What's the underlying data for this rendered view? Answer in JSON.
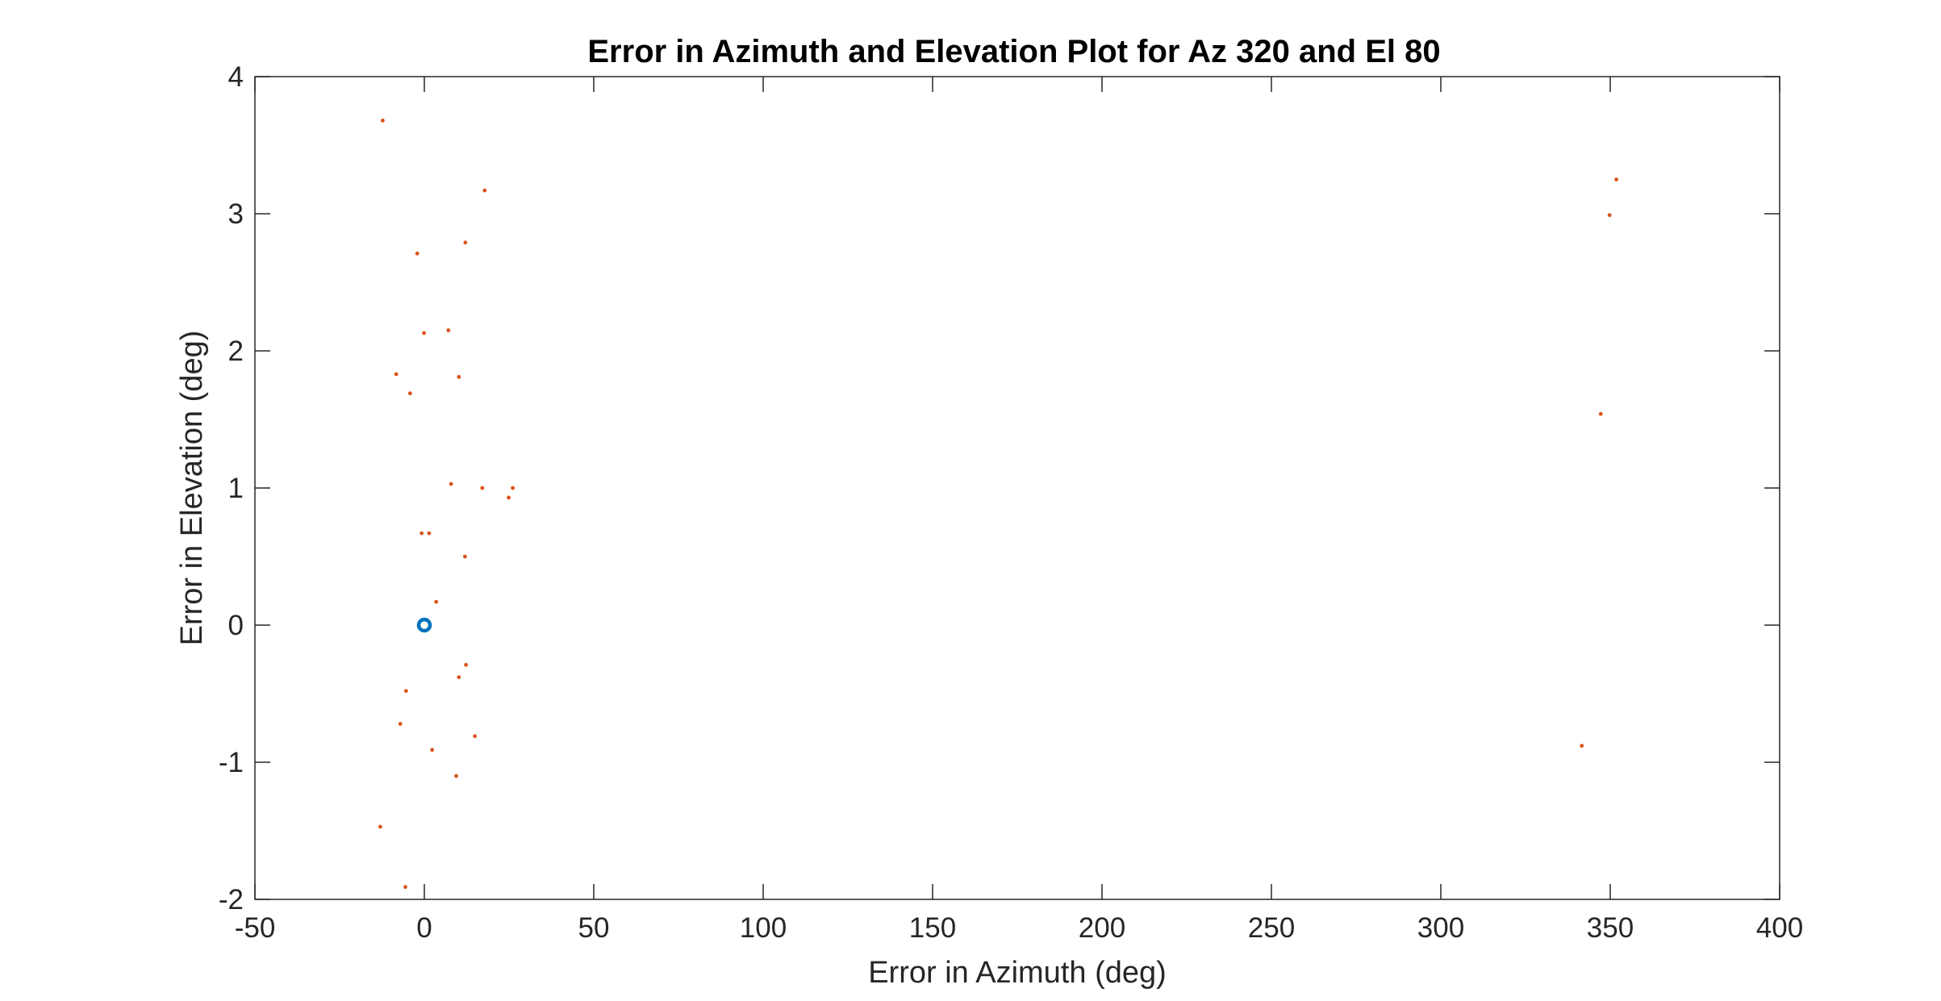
{
  "chart_data": {
    "type": "scatter",
    "title": "Error in Azimuth and Elevation Plot for Az 320 and El 80",
    "xlabel": "Error in Azimuth (deg)",
    "ylabel": "Error in Elevation (deg)",
    "xlim": [
      -50,
      400
    ],
    "ylim": [
      -2,
      4
    ],
    "xticks": [
      -50,
      0,
      50,
      100,
      150,
      200,
      250,
      300,
      350,
      400
    ],
    "yticks": [
      -2,
      -1,
      0,
      1,
      2,
      3,
      4
    ],
    "grid": false,
    "legend": "none",
    "colors": {
      "reference": "#0072BD",
      "samples": "#D95319",
      "axes": "#262626"
    },
    "series": [
      {
        "marker": "circle",
        "points": [
          [
            0,
            0
          ]
        ]
      },
      {
        "marker": "dot",
        "points": [
          [
            -12.3,
            3.68
          ],
          [
            17.8,
            3.17
          ],
          [
            12.1,
            2.79
          ],
          [
            -2.1,
            2.71
          ],
          [
            7.1,
            2.15
          ],
          [
            -0.1,
            2.13
          ],
          [
            -8.3,
            1.83
          ],
          [
            10.2,
            1.81
          ],
          [
            -4.2,
            1.69
          ],
          [
            7.9,
            1.03
          ],
          [
            17.1,
            1.0
          ],
          [
            26.1,
            1.0
          ],
          [
            24.9,
            0.93
          ],
          [
            -0.8,
            0.67
          ],
          [
            1.4,
            0.67
          ],
          [
            12.0,
            0.5
          ],
          [
            3.5,
            0.17
          ],
          [
            12.3,
            -0.29
          ],
          [
            10.2,
            -0.38
          ],
          [
            -5.4,
            -0.48
          ],
          [
            -7.1,
            -0.72
          ],
          [
            14.9,
            -0.81
          ],
          [
            2.3,
            -0.91
          ],
          [
            9.4,
            -1.1
          ],
          [
            -13.0,
            -1.47
          ],
          [
            -5.6,
            -1.91
          ],
          [
            351.8,
            3.25
          ],
          [
            349.8,
            2.99
          ],
          [
            347.2,
            1.54
          ],
          [
            341.6,
            -0.88
          ]
        ]
      }
    ]
  }
}
